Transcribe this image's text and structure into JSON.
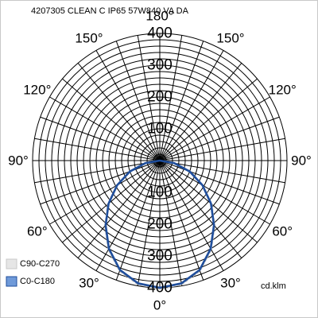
{
  "chart_data": {
    "type": "polar",
    "title": "4207305 CLEAN C IP65 57W840 VA DA",
    "unit": "cd.klm",
    "r_max": 400,
    "radial_ticks": [
      "100",
      "200",
      "300",
      "400"
    ],
    "angle_labels": [
      {
        "angle": 0,
        "label": "0°"
      },
      {
        "angle": 30,
        "label": "30°"
      },
      {
        "angle": -30,
        "label": "30°"
      },
      {
        "angle": 60,
        "label": "60°"
      },
      {
        "angle": -60,
        "label": "60°"
      },
      {
        "angle": 90,
        "label": "90°"
      },
      {
        "angle": -90,
        "label": "90°"
      },
      {
        "angle": 120,
        "label": "120°"
      },
      {
        "angle": -120,
        "label": "120°"
      },
      {
        "angle": 150,
        "label": "150°"
      },
      {
        "angle": -150,
        "label": "150°"
      },
      {
        "angle": 180,
        "label": "180°"
      }
    ],
    "legend_position": "bottom-left",
    "series": [
      {
        "name": "C90-C270",
        "color": "#c8c8c8",
        "legend_fill": "#e6e6e6",
        "style": "dashed",
        "angles": [
          -90,
          -80,
          -70,
          -60,
          -50,
          -40,
          -30,
          -20,
          -10,
          0,
          10,
          20,
          30,
          40,
          50,
          60,
          70,
          80,
          90
        ],
        "values": [
          0,
          48,
          103,
          158,
          214,
          269,
          324,
          370,
          396,
          404,
          396,
          370,
          324,
          269,
          214,
          158,
          103,
          48,
          0
        ]
      },
      {
        "name": "C0-C180",
        "color": "#1f4e9c",
        "legend_fill": "#6f9ad9",
        "style": "solid",
        "angles": [
          -90,
          -80,
          -70,
          -60,
          -50,
          -40,
          -30,
          -20,
          -10,
          0,
          10,
          20,
          30,
          40,
          50,
          60,
          70,
          80,
          90
        ],
        "values": [
          0,
          46,
          100,
          155,
          210,
          265,
          320,
          366,
          392,
          400,
          392,
          366,
          320,
          265,
          210,
          155,
          100,
          46,
          0
        ]
      }
    ]
  }
}
